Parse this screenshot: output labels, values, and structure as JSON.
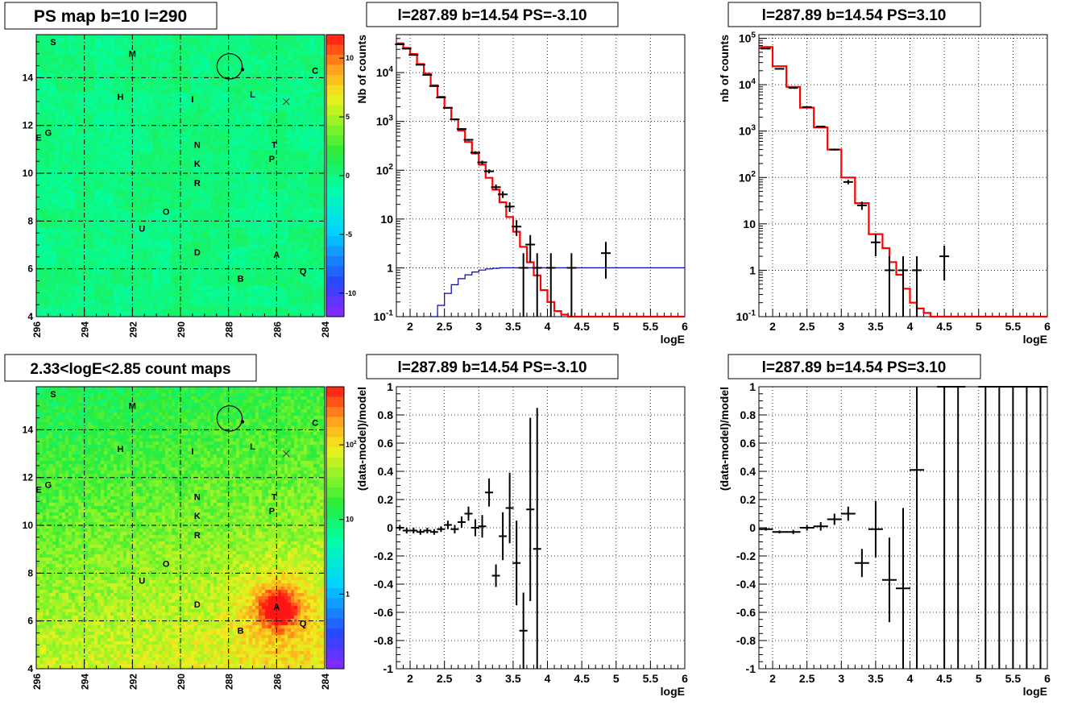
{
  "titles": {
    "map_top": "PS map b=10 l=290",
    "spec_left": "l=287.89 b=14.54 PS=-3.10",
    "spec_right": "l=287.89 b=14.54 PS=3.10",
    "map_bottom": "2.33<logE<2.85 count maps",
    "res_left": "l=287.89 b=14.54 PS=-3.10",
    "res_right": "l=287.89 b=14.54 PS=3.10"
  },
  "chart_data": [
    {
      "id": "ps_map",
      "type": "heatmap",
      "title": "PS map b=10 l=290",
      "xlim": [
        296,
        284
      ],
      "ylim": [
        4,
        15.8
      ],
      "xticks": [
        "296",
        "294",
        "292",
        "290",
        "288",
        "286",
        "284"
      ],
      "yticks": [
        "4",
        "6",
        "8",
        "10",
        "12",
        "14"
      ],
      "colorbar": {
        "range": [
          -12,
          12
        ],
        "ticks": [
          "10",
          "5",
          "0",
          "-5",
          "-10"
        ]
      },
      "background_level": 0.5,
      "sources": [
        {
          "label": "S",
          "l": 295.3,
          "b": 15.5
        },
        {
          "label": "M",
          "l": 292.0,
          "b": 15.0
        },
        {
          "label": "C",
          "l": 284.4,
          "b": 14.3
        },
        {
          "label": "H",
          "l": 292.5,
          "b": 13.2
        },
        {
          "label": "I",
          "l": 289.5,
          "b": 13.1
        },
        {
          "label": "L",
          "l": 287.0,
          "b": 13.3
        },
        {
          "label": "G",
          "l": 295.5,
          "b": 11.7
        },
        {
          "label": "E",
          "l": 295.9,
          "b": 11.5
        },
        {
          "label": "N",
          "l": 289.3,
          "b": 11.2
        },
        {
          "label": "T",
          "l": 286.1,
          "b": 11.2
        },
        {
          "label": "K",
          "l": 289.3,
          "b": 10.4
        },
        {
          "label": "P",
          "l": 286.2,
          "b": 10.6
        },
        {
          "label": "R",
          "l": 289.3,
          "b": 9.6
        },
        {
          "label": "O",
          "l": 290.6,
          "b": 8.4
        },
        {
          "label": "U",
          "l": 291.6,
          "b": 7.7
        },
        {
          "label": "D",
          "l": 289.3,
          "b": 6.7
        },
        {
          "label": "A",
          "l": 286.0,
          "b": 6.6
        },
        {
          "label": "Q",
          "l": 284.9,
          "b": 5.9
        },
        {
          "label": "B",
          "l": 287.5,
          "b": 5.6
        }
      ],
      "marker_circle": {
        "l": 287.89,
        "b": 14.54,
        "radius_deg": 0.5
      },
      "marker_cross": {
        "l": 285.6,
        "b": 13.0
      }
    },
    {
      "id": "spectrum_left",
      "type": "line",
      "title": "l=287.89 b=14.54 PS=-3.10",
      "xlabel": "logE",
      "ylabel": "Nb of counts",
      "xlim": [
        1.8,
        6
      ],
      "ylim": [
        0.1,
        60000
      ],
      "yscale": "log",
      "xticks": [
        "2",
        "2.5",
        "3",
        "3.5",
        "4",
        "4.5",
        "5",
        "5.5",
        "6"
      ],
      "yticks": [
        "10^{-1}",
        "1",
        "10",
        "10^{2}",
        "10^{3}",
        "10^{4}"
      ],
      "grid": true,
      "series": [
        {
          "role": "model",
          "color": "#ff0000",
          "edges": [
            1.8,
            1.9,
            2.0,
            2.1,
            2.2,
            2.3,
            2.4,
            2.5,
            2.6,
            2.7,
            2.8,
            2.9,
            3.0,
            3.1,
            3.2,
            3.3,
            3.4,
            3.5,
            3.6,
            3.7,
            3.8,
            3.9,
            4.0,
            4.1,
            4.2,
            4.3,
            4.4,
            6.0
          ],
          "values": [
            40000,
            32000,
            24000,
            15000,
            9500,
            5500,
            3200,
            1900,
            1100,
            650,
            380,
            220,
            130,
            70,
            40,
            22,
            11,
            5.5,
            2.7,
            1.3,
            0.7,
            0.35,
            0.2,
            0.13,
            0.11,
            0.1,
            0.1
          ]
        },
        {
          "role": "efficiency",
          "color": "#0000c8",
          "edges": [
            2.3,
            2.4,
            2.5,
            2.6,
            2.7,
            2.8,
            2.9,
            3.0,
            3.1,
            3.2,
            3.3,
            3.4,
            3.5,
            3.6,
            6.0
          ],
          "values": [
            0.1,
            0.17,
            0.3,
            0.45,
            0.6,
            0.72,
            0.82,
            0.9,
            0.95,
            0.98,
            1.0,
            1.0,
            1.0,
            1.0
          ]
        },
        {
          "role": "data",
          "color": "#000000",
          "points": [
            {
              "x": 1.85,
              "y": 38000,
              "lo": 37000,
              "hi": 39000
            },
            {
              "x": 1.95,
              "y": 31000,
              "lo": 30500,
              "hi": 31500
            },
            {
              "x": 2.05,
              "y": 23000,
              "lo": 22500,
              "hi": 23500
            },
            {
              "x": 2.15,
              "y": 14500,
              "lo": 14200,
              "hi": 14800
            },
            {
              "x": 2.25,
              "y": 9000,
              "lo": 8800,
              "hi": 9200
            },
            {
              "x": 2.35,
              "y": 5300,
              "lo": 5150,
              "hi": 5450
            },
            {
              "x": 2.45,
              "y": 3100,
              "lo": 3000,
              "hi": 3200
            },
            {
              "x": 2.55,
              "y": 1900,
              "lo": 1850,
              "hi": 1950
            },
            {
              "x": 2.65,
              "y": 1100,
              "lo": 1060,
              "hi": 1140
            },
            {
              "x": 2.75,
              "y": 700,
              "lo": 670,
              "hi": 730
            },
            {
              "x": 2.85,
              "y": 420,
              "lo": 400,
              "hi": 440
            },
            {
              "x": 2.95,
              "y": 230,
              "lo": 215,
              "hi": 245
            },
            {
              "x": 3.05,
              "y": 145,
              "lo": 133,
              "hi": 157
            },
            {
              "x": 3.15,
              "y": 95,
              "lo": 86,
              "hi": 104
            },
            {
              "x": 3.25,
              "y": 45,
              "lo": 39,
              "hi": 51
            },
            {
              "x": 3.35,
              "y": 32,
              "lo": 27,
              "hi": 37
            },
            {
              "x": 3.45,
              "y": 18,
              "lo": 14,
              "hi": 22
            },
            {
              "x": 3.55,
              "y": 7,
              "lo": 4.5,
              "hi": 9.5
            },
            {
              "x": 3.65,
              "y": 1,
              "lo": 0.1,
              "hi": 2
            },
            {
              "x": 3.75,
              "y": 3,
              "lo": 1.3,
              "hi": 4.7
            },
            {
              "x": 3.85,
              "y": 1,
              "lo": 0.1,
              "hi": 2
            },
            {
              "x": 4.05,
              "y": 1,
              "lo": 0.1,
              "hi": 2
            },
            {
              "x": 4.35,
              "y": 1,
              "lo": 0.1,
              "hi": 2
            },
            {
              "x": 4.85,
              "y": 2,
              "lo": 0.6,
              "hi": 3.4
            }
          ]
        }
      ]
    },
    {
      "id": "spectrum_right",
      "type": "line",
      "title": "l=287.89 b=14.54 PS=3.10",
      "xlabel": "logE",
      "ylabel": "nb of counts",
      "xlim": [
        1.8,
        6
      ],
      "ylim": [
        0.1,
        120000
      ],
      "yscale": "log",
      "xticks": [
        "2",
        "2.5",
        "3",
        "3.5",
        "4",
        "4.5",
        "5",
        "5.5",
        "6"
      ],
      "yticks": [
        "10^{-1}",
        "1",
        "10",
        "10^{2}",
        "10^{3}",
        "10^{4}",
        "10^{5}"
      ],
      "grid": true,
      "series": [
        {
          "role": "model",
          "color": "#ff0000",
          "edges": [
            1.8,
            2.0,
            2.2,
            2.4,
            2.6,
            2.8,
            3.0,
            3.2,
            3.4,
            3.6,
            3.7,
            3.8,
            3.9,
            4.0,
            4.1,
            4.2,
            4.3,
            4.4,
            4.5,
            6.0
          ],
          "values": [
            65000,
            25000,
            9000,
            3200,
            1200,
            400,
            100,
            28,
            6,
            3,
            1.5,
            0.8,
            0.4,
            0.2,
            0.15,
            0.12,
            0.1,
            0.1,
            0.1
          ]
        },
        {
          "role": "data",
          "color": "#000000",
          "points": [
            {
              "x": 1.9,
              "y": 60000,
              "lo": 59000,
              "hi": 61000
            },
            {
              "x": 2.1,
              "y": 22000,
              "lo": 21500,
              "hi": 22500
            },
            {
              "x": 2.3,
              "y": 8500,
              "lo": 8300,
              "hi": 8700
            },
            {
              "x": 2.5,
              "y": 3300,
              "lo": 3200,
              "hi": 3400
            },
            {
              "x": 2.7,
              "y": 1250,
              "lo": 1200,
              "hi": 1300
            },
            {
              "x": 2.9,
              "y": 400,
              "lo": 380,
              "hi": 420
            },
            {
              "x": 3.1,
              "y": 80,
              "lo": 71,
              "hi": 89
            },
            {
              "x": 3.3,
              "y": 25,
              "lo": 20,
              "hi": 30
            },
            {
              "x": 3.5,
              "y": 4,
              "lo": 2,
              "hi": 6
            },
            {
              "x": 3.7,
              "y": 1,
              "lo": 0.1,
              "hi": 2
            },
            {
              "x": 3.9,
              "y": 1,
              "lo": 0.1,
              "hi": 2
            },
            {
              "x": 4.1,
              "y": 1,
              "lo": 0.1,
              "hi": 2
            },
            {
              "x": 4.5,
              "y": 2,
              "lo": 0.6,
              "hi": 3.4
            }
          ]
        }
      ]
    },
    {
      "id": "count_map",
      "type": "heatmap",
      "title": "2.33<logE<2.85 count maps",
      "xlim": [
        296,
        284
      ],
      "ylim": [
        4,
        15.8
      ],
      "xticks": [
        "296",
        "294",
        "292",
        "290",
        "288",
        "286",
        "284"
      ],
      "yticks": [
        "4",
        "6",
        "8",
        "10",
        "12",
        "14"
      ],
      "colorbar": {
        "scale": "log",
        "range": [
          0.1,
          600
        ],
        "ticks": [
          "10^{2}",
          "10",
          "1"
        ]
      },
      "peak": {
        "l": 286.0,
        "b": 6.6,
        "value": 400
      },
      "sources_ref": "ps_map"
    },
    {
      "id": "residual_left",
      "type": "scatter",
      "title": "l=287.89 b=14.54 PS=-3.10",
      "xlabel": "logE",
      "ylabel": "(data-model)/model",
      "xlim": [
        1.8,
        6
      ],
      "ylim": [
        -1,
        1
      ],
      "xticks": [
        "2",
        "2.5",
        "3",
        "3.5",
        "4",
        "4.5",
        "5",
        "5.5",
        "6"
      ],
      "yticks": [
        "1",
        "0.8",
        "0.6",
        "0.4",
        "0.2",
        "0",
        "-0.2",
        "-0.4",
        "-0.6",
        "-0.8",
        "-1"
      ],
      "grid": true,
      "points": [
        {
          "x": 1.85,
          "y": 0.0,
          "err": 0.02
        },
        {
          "x": 1.95,
          "y": -0.02,
          "err": 0.02
        },
        {
          "x": 2.05,
          "y": -0.02,
          "err": 0.02
        },
        {
          "x": 2.15,
          "y": -0.03,
          "err": 0.02
        },
        {
          "x": 2.25,
          "y": -0.02,
          "err": 0.02
        },
        {
          "x": 2.35,
          "y": -0.03,
          "err": 0.02
        },
        {
          "x": 2.45,
          "y": -0.01,
          "err": 0.02
        },
        {
          "x": 2.55,
          "y": 0.02,
          "err": 0.03
        },
        {
          "x": 2.65,
          "y": -0.01,
          "err": 0.03
        },
        {
          "x": 2.75,
          "y": 0.04,
          "err": 0.04
        },
        {
          "x": 2.85,
          "y": 0.1,
          "err": 0.05
        },
        {
          "x": 2.95,
          "y": 0.0,
          "err": 0.06
        },
        {
          "x": 3.05,
          "y": 0.01,
          "err": 0.08
        },
        {
          "x": 3.15,
          "y": 0.25,
          "err": 0.1
        },
        {
          "x": 3.25,
          "y": -0.34,
          "err": 0.08
        },
        {
          "x": 3.35,
          "y": -0.06,
          "err": 0.17
        },
        {
          "x": 3.45,
          "y": 0.14,
          "err": 0.25
        },
        {
          "x": 3.55,
          "y": -0.25,
          "err": 0.3
        },
        {
          "x": 3.65,
          "y": -0.73,
          "err": 0.27
        },
        {
          "x": 3.75,
          "y": 0.13,
          "err": 0.65
        },
        {
          "x": 3.85,
          "y": -0.15,
          "err": 1.0
        }
      ]
    },
    {
      "id": "residual_right",
      "type": "scatter",
      "title": "l=287.89 b=14.54 PS=3.10",
      "xlabel": "logE",
      "ylabel": "(data-model)/model",
      "xlim": [
        1.8,
        6
      ],
      "ylim": [
        -1,
        1
      ],
      "xticks": [
        "2",
        "2.5",
        "3",
        "3.5",
        "4",
        "4.5",
        "5",
        "5.5",
        "6"
      ],
      "yticks": [
        "1",
        "0.8",
        "0.6",
        "0.4",
        "0.2",
        "0",
        "-0.2",
        "-0.4",
        "-0.6",
        "-0.8",
        "-1"
      ],
      "grid": true,
      "points": [
        {
          "x": 1.9,
          "y": -0.01,
          "err": 0.01
        },
        {
          "x": 2.1,
          "y": -0.03,
          "err": 0.01
        },
        {
          "x": 2.3,
          "y": -0.03,
          "err": 0.015
        },
        {
          "x": 2.5,
          "y": 0.0,
          "err": 0.02
        },
        {
          "x": 2.7,
          "y": 0.01,
          "err": 0.03
        },
        {
          "x": 2.9,
          "y": 0.06,
          "err": 0.04
        },
        {
          "x": 3.1,
          "y": 0.1,
          "err": 0.05
        },
        {
          "x": 3.3,
          "y": -0.25,
          "err": 0.1
        },
        {
          "x": 3.5,
          "y": -0.01,
          "err": 0.2
        },
        {
          "x": 3.7,
          "y": -0.37,
          "err": 0.3
        },
        {
          "x": 3.9,
          "y": -0.43,
          "err": 0.57
        },
        {
          "x": 4.1,
          "y": 0.41,
          "err": 1.5
        },
        {
          "x": 4.5,
          "y": 1.0,
          "err": 2.0
        },
        {
          "x": 4.7,
          "y": 1.0,
          "err": 2.0
        },
        {
          "x": 5.1,
          "y": 1.0,
          "err": 2.0
        },
        {
          "x": 5.3,
          "y": 1.0,
          "err": 2.0
        },
        {
          "x": 5.5,
          "y": 1.0,
          "err": 2.0
        },
        {
          "x": 5.7,
          "y": 1.0,
          "err": 2.0
        },
        {
          "x": 5.9,
          "y": 1.0,
          "err": 2.0
        }
      ]
    }
  ]
}
